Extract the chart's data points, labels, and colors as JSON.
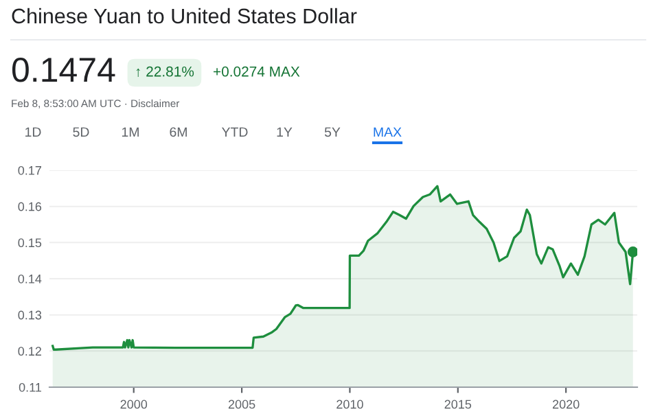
{
  "chart_data": {
    "type": "area",
    "title": "Chinese Yuan to United States Dollar",
    "annotations": [
      "0.1474",
      "↑ 22.81%",
      "+0.0274 MAX",
      "Feb 8, 8:53:00 AM UTC · Disclaimer",
      "1D",
      "5D",
      "1M",
      "6M",
      "YTD",
      "1Y",
      "5Y",
      "MAX"
    ],
    "series": [
      {
        "color": "#1e8e3e",
        "x": [
          1996.25,
          1996.3,
          1996.4,
          1998.1,
          1999.5,
          1999.55,
          1999.6,
          1999.7,
          1999.75,
          1999.8,
          1999.9,
          1999.95,
          2000.0,
          2002.0,
          2005.5,
          2005.55,
          2006.0,
          2006.4,
          2006.6,
          2007.0,
          2007.25,
          2007.5,
          2007.6,
          2007.85,
          2009.99,
          2010.0,
          2010.42,
          2010.63,
          2010.84,
          2011.27,
          2011.69,
          2012.0,
          2012.3,
          2012.6,
          2012.95,
          2013.38,
          2013.7,
          2014.05,
          2014.2,
          2014.64,
          2014.96,
          2015.49,
          2015.7,
          2016.0,
          2016.33,
          2016.65,
          2016.92,
          2017.28,
          2017.6,
          2017.9,
          2018.19,
          2018.33,
          2018.65,
          2018.86,
          2019.18,
          2019.39,
          2019.7,
          2019.87,
          2020.23,
          2020.55,
          2020.86,
          2021.18,
          2021.5,
          2021.81,
          2022.24,
          2022.45,
          2022.76,
          2022.97,
          2023.1
        ],
        "values": [
          0.1214,
          0.1204,
          0.1204,
          0.121,
          0.121,
          0.1225,
          0.121,
          0.123,
          0.121,
          0.123,
          0.121,
          0.123,
          0.121,
          0.1209,
          0.1209,
          0.1237,
          0.124,
          0.1252,
          0.1261,
          0.1294,
          0.1303,
          0.1326,
          0.1327,
          0.1319,
          0.1319,
          0.1464,
          0.1464,
          0.1477,
          0.1505,
          0.1525,
          0.1557,
          0.1585,
          0.1576,
          0.1566,
          0.1601,
          0.1626,
          0.1633,
          0.1656,
          0.1614,
          0.1633,
          0.1607,
          0.1614,
          0.1576,
          0.1557,
          0.1538,
          0.15,
          0.1449,
          0.1462,
          0.1513,
          0.1531,
          0.1591,
          0.1576,
          0.1468,
          0.1442,
          0.1487,
          0.1481,
          0.1436,
          0.1404,
          0.1442,
          0.1411,
          0.1462,
          0.155,
          0.1563,
          0.155,
          0.1582,
          0.15,
          0.1474,
          0.1385,
          0.1474
        ]
      },
      {
        "type": "scatter",
        "color": "#1e8e3e",
        "x": [
          2023.1
        ],
        "values": [
          0.1474
        ]
      }
    ],
    "xlim": [
      1996.1,
      2023.3
    ],
    "ylim": [
      0.11,
      0.17
    ],
    "xticks": [
      2000,
      2005,
      2010,
      2015,
      2020
    ],
    "yticks": [
      0.11,
      0.12,
      0.13,
      0.14,
      0.15,
      0.16,
      0.17
    ],
    "grid": "y",
    "legend": false
  }
}
